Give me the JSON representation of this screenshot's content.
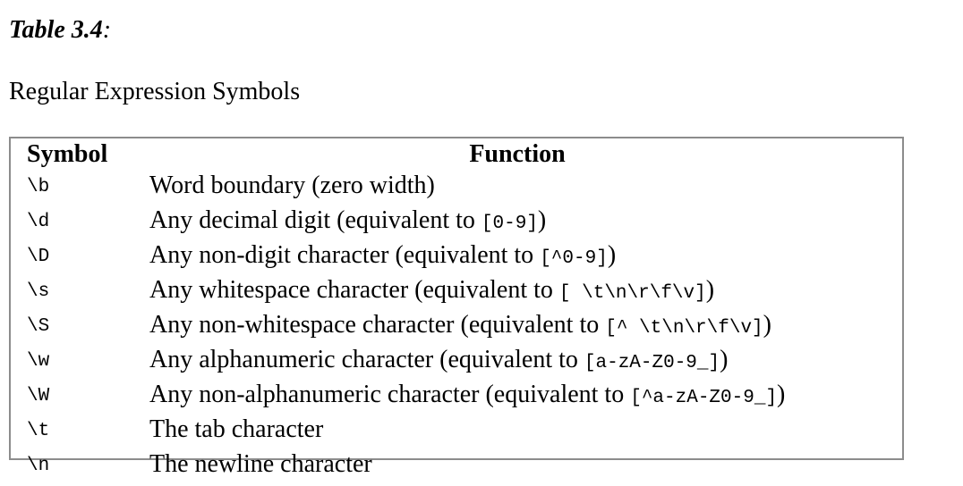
{
  "caption": {
    "label": "Table 3.4",
    "colon": ":"
  },
  "subtitle": "Regular Expression Symbols",
  "table": {
    "headers": {
      "symbol": "Symbol",
      "function": "Function"
    },
    "rows": [
      {
        "symbol": "\\b",
        "text": "Word boundary (zero width)",
        "code": "",
        "close": ""
      },
      {
        "symbol": "\\d",
        "text": "Any decimal digit (equivalent to ",
        "code": "[0-9]",
        "close": ")"
      },
      {
        "symbol": "\\D",
        "text": "Any non-digit character (equivalent to ",
        "code": "[^0-9]",
        "close": ")"
      },
      {
        "symbol": "\\s",
        "text": "Any whitespace character (equivalent to ",
        "code": "[ \\t\\n\\r\\f\\v]",
        "close": ")"
      },
      {
        "symbol": "\\S",
        "text": "Any non-whitespace character (equivalent to ",
        "code": "[^ \\t\\n\\r\\f\\v]",
        "close": ")"
      },
      {
        "symbol": "\\w",
        "text": "Any alphanumeric character (equivalent to ",
        "code": "[a-zA-Z0-9_]",
        "close": ")"
      },
      {
        "symbol": "\\W",
        "text": "Any non-alphanumeric character (equivalent to ",
        "code": "[^a-zA-Z0-9_]",
        "close": ")"
      },
      {
        "symbol": "\\t",
        "text": "The tab character",
        "code": "",
        "close": ""
      },
      {
        "symbol": "\\n",
        "text": "The newline character",
        "code": "",
        "close": ""
      }
    ]
  }
}
